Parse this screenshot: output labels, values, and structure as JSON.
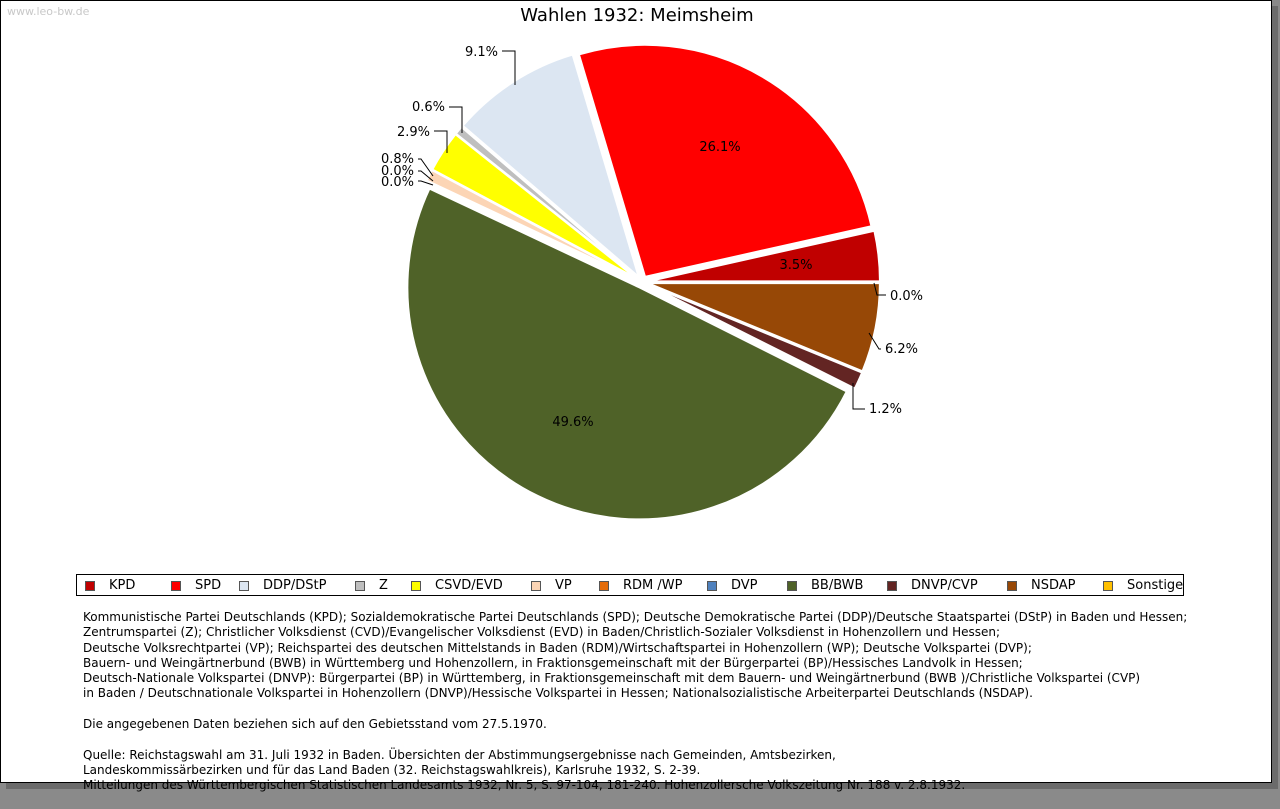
{
  "watermark": "www.leo-bw.de",
  "chart_data": {
    "type": "pie",
    "title": "Wahlen 1932: Meimsheim",
    "categories": [
      "KPD",
      "SPD",
      "DDP/DStP",
      "Z",
      "CSVD/EVD",
      "VP",
      "RDM /WP",
      "DVP",
      "BB/BWB",
      "DNVP/CVP",
      "NSDAP",
      "Sonstige"
    ],
    "values": [
      3.5,
      26.1,
      9.1,
      0.6,
      2.9,
      0.8,
      0.0,
      0.0,
      49.6,
      1.2,
      6.2,
      0.0
    ],
    "labels": [
      "3.5%",
      "26.1%",
      "9.1%",
      "0.6%",
      "2.9%",
      "0.8%",
      "0.0%",
      "0.0%",
      "49.6%",
      "1.2%",
      "6.2%",
      "0.0%"
    ],
    "colors": [
      "#c00000",
      "#ff0000",
      "#dce6f2",
      "#bfbfbf",
      "#ffff00",
      "#fcd5b5",
      "#e46c0a",
      "#4f81bd",
      "#4f6228",
      "#632523",
      "#974806",
      "#ffc000"
    ],
    "legend_position": "bottom"
  },
  "notes": [
    "Kommunistische Partei Deutschlands (KPD); Sozialdemokratische Partei Deutschlands (SPD); Deutsche Demokratische Partei (DDP)/Deutsche Staatspartei (DStP) in Baden und Hessen;\nZentrumspartei (Z); Christlicher Volksdienst (CVD)/Evangelischer Volksdienst (EVD) in Baden/Christlich-Sozialer Volksdienst in Hohenzollern und Hessen;\nDeutsche Volksrechtpartei (VP); Reichspartei des deutschen Mittelstands in Baden (RDM)/Wirtschaftspartei in Hohenzollern (WP); Deutsche Volkspartei (DVP);\nBauern- und Weingärtnerbund (BWB) in Württemberg und Hohenzollern, in Fraktionsgemeinschaft mit der Bürgerpartei (BP)/Hessisches Landvolk in Hessen;\nDeutsch-Nationale Volkspartei (DNVP): Bürgerpartei (BP) in Württemberg, in Fraktionsgemeinschaft mit dem Bauern- und Weingärtnerbund (BWB )/Christliche Volkspartei (CVP)\nin Baden / Deutschnationale Volkspartei in Hohenzollern (DNVP)/Hessische Volkspartei in Hessen; Nationalsozialistische Arbeiterpartei Deutschlands (NSDAP).",
    "Die angegebenen Daten beziehen sich auf den Gebietsstand vom 27.5.1970.",
    "Quelle: Reichstagswahl am 31. Juli 1932 in Baden. Übersichten der Abstimmungsergebnisse nach Gemeinden, Amtsbezirken,\nLandeskommissärbezirken und für das Land Baden (32. Reichstagswahlkreis), Karlsruhe 1932, S. 2-39.\nMitteilungen des Württembergischen Statistischen Landesamts 1932, Nr. 5, S. 97-104, 181-240. Hohenzollersche Volkszeitung Nr. 188 v. 2.8.1932."
  ]
}
